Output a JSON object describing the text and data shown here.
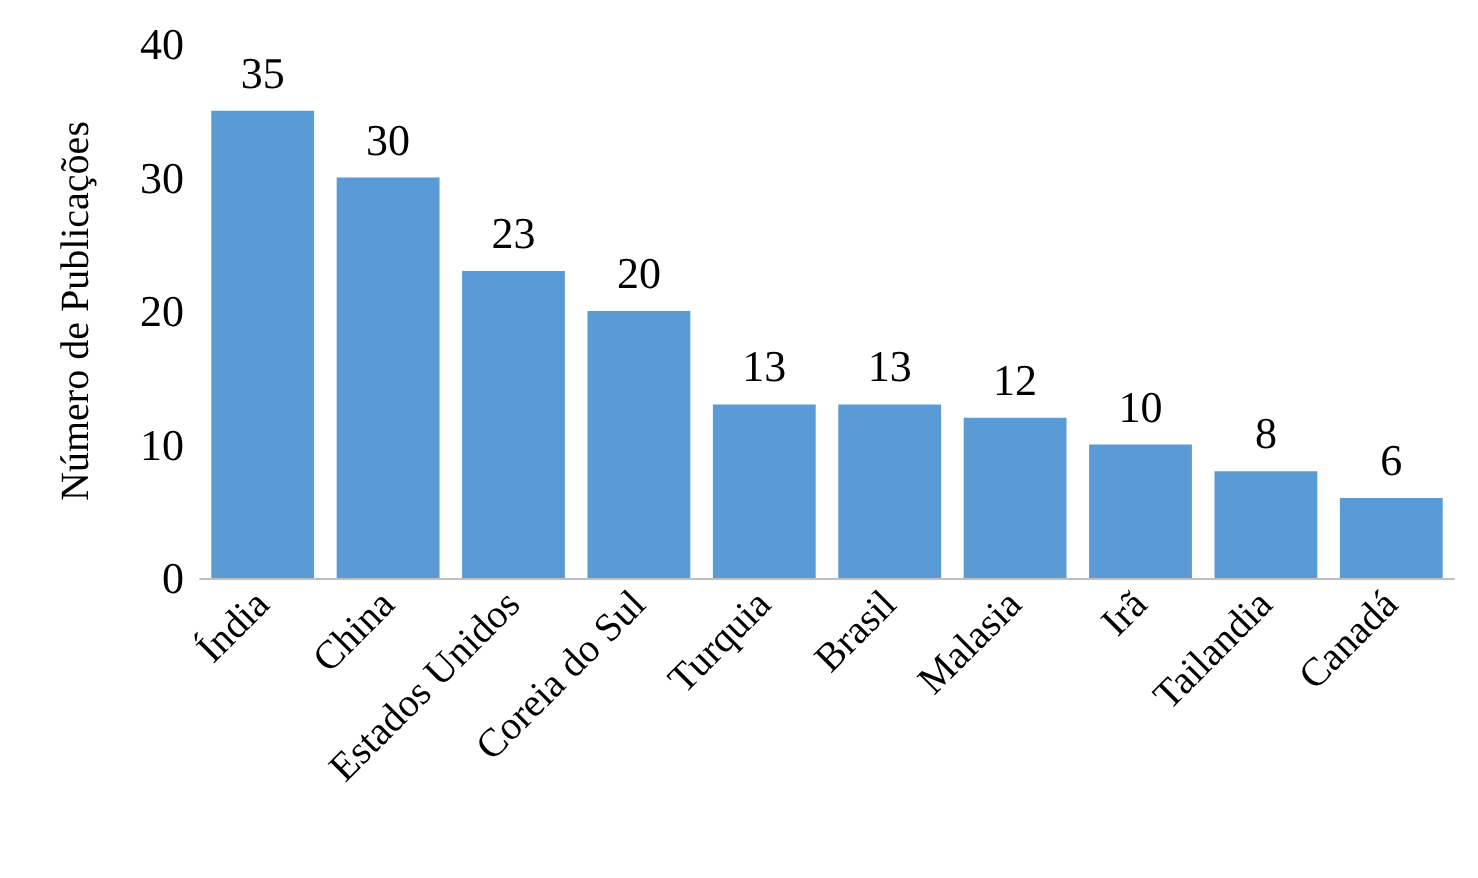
{
  "chart_data": {
    "type": "bar",
    "ylabel": "Número de Publicações",
    "categories": [
      "Índia",
      "China",
      "Estados Unidos",
      "Coreia do Sul",
      "Turquia",
      "Brasil",
      "Malasia",
      "Irã",
      "Tailandia",
      "Canadá"
    ],
    "values": [
      35,
      30,
      23,
      20,
      13,
      13,
      12,
      10,
      8,
      6
    ],
    "color": "#5b9bd5",
    "ylim": [
      0,
      40
    ],
    "yticks": [
      0,
      10,
      20,
      30,
      40
    ],
    "grid": false,
    "data_labels": true
  }
}
